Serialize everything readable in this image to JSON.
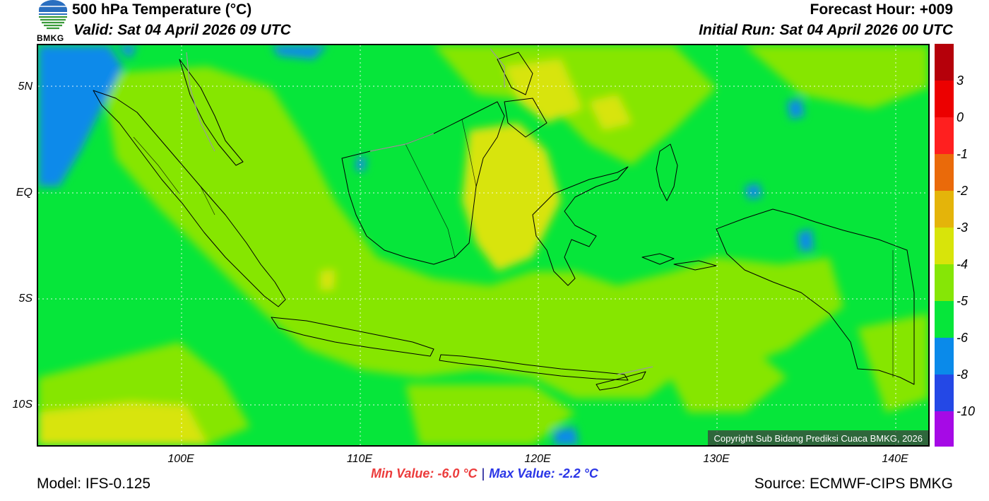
{
  "header": {
    "title": "500 hPa Temperature (°C)",
    "valid": "Valid: Sat 04 April 2026 09 UTC",
    "forecast_hour": "Forecast Hour: +009",
    "initial_run": "Initial Run: Sat 04 April 2026 00 UTC"
  },
  "logo": {
    "text": "BMKG",
    "icon": "bmkg-logo-icon"
  },
  "map": {
    "lon_range": [
      92,
      142
    ],
    "lat_range": [
      -12,
      7
    ],
    "lat_ticks": [
      {
        "value": 5,
        "label": "5N"
      },
      {
        "value": 0,
        "label": "EQ"
      },
      {
        "value": -5,
        "label": "5S"
      },
      {
        "value": -10,
        "label": "10S"
      }
    ],
    "lon_ticks": [
      {
        "value": 100,
        "label": "100E"
      },
      {
        "value": 110,
        "label": "110E"
      },
      {
        "value": 120,
        "label": "120E"
      },
      {
        "value": 130,
        "label": "130E"
      },
      {
        "value": 140,
        "label": "140E"
      }
    ],
    "copyright": "Copyright Sub Bidang Prediksi Cuaca BMKG, 2026"
  },
  "colorbar": {
    "labels": [
      "3",
      "0",
      "-1",
      "-2",
      "-3",
      "-4",
      "-5",
      "-6",
      "-8",
      "-10"
    ],
    "colors": [
      "#b5000a",
      "#ec0000",
      "#ff1f1f",
      "#ea6a0a",
      "#e4b40a",
      "#d8e40a",
      "#86e606",
      "#06e63a",
      "#0a8aea",
      "#2448e6",
      "#a60ae6",
      "#9e004f"
    ]
  },
  "stats": {
    "min_label": "Min Value: -6.0 °C",
    "max_label": "Max Value: -2.2 °C",
    "separator": "|"
  },
  "footer": {
    "model": "Model: IFS-0.125",
    "source": "Source: ECMWF-CIPS BMKG"
  }
}
